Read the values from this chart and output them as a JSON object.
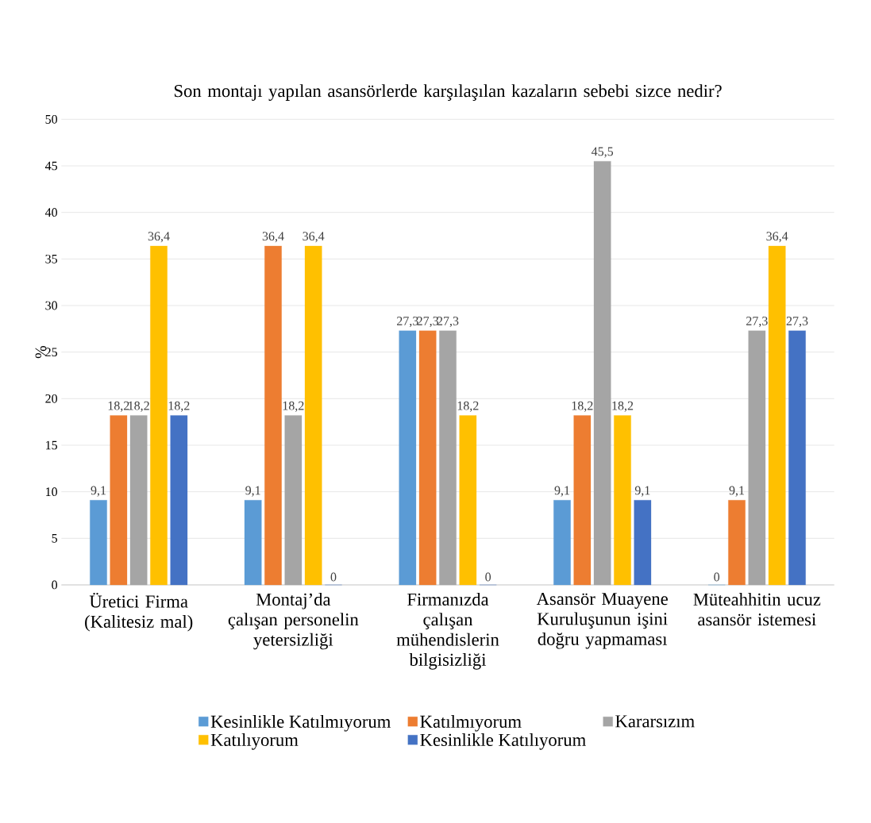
{
  "chart_data": {
    "type": "bar",
    "title": "Son montajı yapılan asansörlerde karşılaşılan kazaların sebebi sizce nedir?",
    "ylabel": "%",
    "categories": [
      "Üretici Firma (Kalitesiz mal)",
      "Montaj’da çalışan personelin yetersizliği",
      "Firmanızda çalışan mühendislerin bilgisizliği",
      "Asansör Muayene Kuruluşunun işini doğru yapmaması",
      "Müteahhitin ucuz asansör istemesi"
    ],
    "series": [
      {
        "name": "Kesinlikle Katılmıyorum",
        "color": "#5b9bd5",
        "values": [
          9.1,
          9.1,
          27.3,
          9.1,
          0
        ],
        "value_labels": [
          "9,1",
          "9,1",
          "27,3",
          "9,1",
          "0"
        ]
      },
      {
        "name": "Katılmıyorum",
        "color": "#ed7d31",
        "values": [
          18.2,
          36.4,
          27.3,
          18.2,
          9.1
        ],
        "value_labels": [
          "18,2",
          "36,4",
          "27,3",
          "18,2",
          "9,1"
        ]
      },
      {
        "name": "Kararsızım",
        "color": "#a5a5a5",
        "values": [
          18.2,
          18.2,
          27.3,
          45.5,
          27.3
        ],
        "value_labels": [
          "18,2",
          "18,2",
          "27,3",
          "45,5",
          "27,3"
        ]
      },
      {
        "name": "Katılıyorum",
        "color": "#ffc000",
        "values": [
          36.4,
          36.4,
          18.2,
          18.2,
          36.4
        ],
        "value_labels": [
          "36,4",
          "36,4",
          "18,2",
          "18,2",
          "36,4"
        ]
      },
      {
        "name": "Kesinlikle Katılıyorum",
        "color": "#4472c4",
        "values": [
          18.2,
          0,
          0,
          9.1,
          27.3
        ],
        "value_labels": [
          "18,2",
          "0",
          "0",
          "9,1",
          "27,3"
        ]
      }
    ],
    "ylim": [
      0,
      50
    ],
    "yticks": [
      0,
      5,
      10,
      15,
      20,
      25,
      30,
      35,
      40,
      45,
      50
    ],
    "grid": "y",
    "legend": "bottom"
  }
}
